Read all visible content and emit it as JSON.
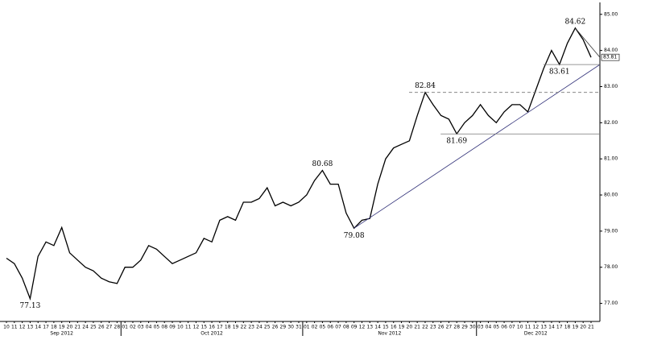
{
  "chart_data": {
    "type": "line",
    "months": [
      {
        "label": "Sep 2012",
        "days": [
          "10",
          "11",
          "12",
          "13",
          "14",
          "17",
          "18",
          "19",
          "20",
          "21",
          "24",
          "25",
          "26",
          "27",
          "28"
        ]
      },
      {
        "label": "Oct 2012",
        "days": [
          "01",
          "02",
          "03",
          "04",
          "05",
          "08",
          "09",
          "10",
          "11",
          "12",
          "15",
          "16",
          "17",
          "18",
          "19",
          "22",
          "23",
          "24",
          "25",
          "26",
          "29",
          "30",
          "31"
        ]
      },
      {
        "label": "Nov 2012",
        "days": [
          "01",
          "02",
          "05",
          "06",
          "07",
          "08",
          "09",
          "12",
          "13",
          "14",
          "15",
          "16",
          "19",
          "20",
          "21",
          "22",
          "23",
          "26",
          "27",
          "28",
          "29",
          "30"
        ]
      },
      {
        "label": "Dec 2012",
        "days": [
          "03",
          "04",
          "05",
          "06",
          "07",
          "10",
          "11",
          "12",
          "13",
          "14",
          "17",
          "18",
          "19",
          "20",
          "21"
        ]
      }
    ],
    "series": [
      {
        "color": "#000000",
        "values": [
          78.25,
          78.1,
          77.7,
          77.13,
          78.3,
          78.7,
          78.6,
          79.1,
          78.4,
          78.2,
          78.0,
          77.9,
          77.7,
          77.6,
          77.55,
          78.0,
          78.0,
          78.2,
          78.6,
          78.5,
          78.3,
          78.1,
          78.2,
          78.3,
          78.4,
          78.8,
          78.7,
          79.3,
          79.4,
          79.3,
          79.8,
          79.8,
          79.9,
          80.2,
          79.7,
          79.8,
          79.7,
          79.8,
          80.0,
          80.4,
          80.68,
          80.3,
          80.3,
          79.5,
          79.08,
          79.3,
          79.35,
          80.3,
          81.0,
          81.3,
          81.4,
          81.5,
          82.2,
          82.84,
          82.5,
          82.2,
          82.1,
          81.69,
          82.0,
          82.2,
          82.5,
          82.2,
          82.0,
          82.3,
          82.5,
          82.5,
          82.3,
          82.9,
          83.5,
          84.0,
          83.61,
          84.2,
          84.62,
          84.3,
          83.81
        ]
      }
    ],
    "annotations": [
      {
        "value": 77.13,
        "line": "none"
      },
      {
        "value": 80.68,
        "line": "none"
      },
      {
        "value": 79.08,
        "line": "trend",
        "to": 83.61
      },
      {
        "value": 82.84,
        "line": "dashed"
      },
      {
        "value": 81.69,
        "line": "solid"
      },
      {
        "value": 83.61,
        "line": "solid"
      },
      {
        "value": 84.62,
        "line": "trend",
        "to": 83.81
      }
    ],
    "ylim": [
      76.5,
      85.33
    ],
    "yticks": [
      {
        "value": 77,
        "label": "77.00"
      },
      {
        "value": 78,
        "label": "78.00"
      },
      {
        "value": 79,
        "label": "79.00"
      },
      {
        "value": 80,
        "label": "80.00"
      },
      {
        "value": 81,
        "label": "81.00"
      },
      {
        "value": 82,
        "label": "82.00"
      },
      {
        "value": 83,
        "label": "83.00"
      },
      {
        "value": 84,
        "label": "84.00"
      },
      {
        "value": 85,
        "label": "85.00"
      }
    ],
    "last_value_box": true
  }
}
